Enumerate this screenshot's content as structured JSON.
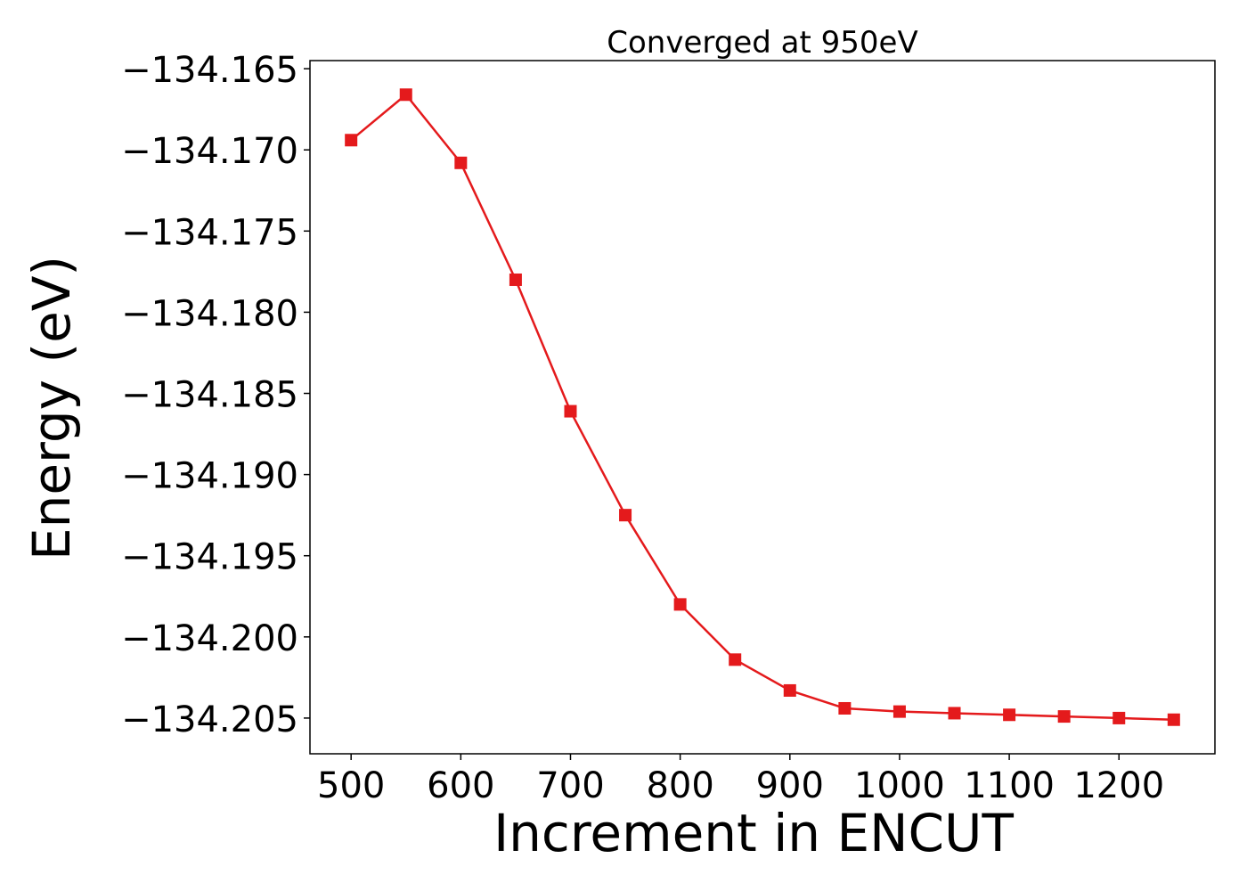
{
  "chart_data": {
    "type": "line",
    "title": "Converged at 950eV",
    "xlabel": "Increment in ENCUT",
    "ylabel": "Energy (eV)",
    "x": [
      500,
      550,
      600,
      650,
      700,
      750,
      800,
      850,
      900,
      950,
      1000,
      1050,
      1100,
      1150,
      1200,
      1250
    ],
    "series": [
      {
        "values": [
          -134.1694,
          -134.1666,
          -134.1708,
          -134.178,
          -134.1861,
          -134.1925,
          -134.198,
          -134.2014,
          -134.2033,
          -134.2044,
          -134.2046,
          -134.2047,
          -134.2048,
          -134.2049,
          -134.205,
          -134.2051
        ],
        "color": "#e41a1c",
        "marker": "square"
      }
    ],
    "xticks": [
      500,
      600,
      700,
      800,
      900,
      1000,
      1100,
      1200
    ],
    "xtick_labels": [
      "500",
      "600",
      "700",
      "800",
      "900",
      "1000",
      "1100",
      "1200"
    ],
    "yticks": [
      -134.165,
      -134.17,
      -134.175,
      -134.18,
      -134.185,
      -134.19,
      -134.195,
      -134.2,
      -134.205
    ],
    "ytick_labels": [
      "−134.165",
      "−134.170",
      "−134.175",
      "−134.180",
      "−134.185",
      "−134.190",
      "−134.195",
      "−134.200",
      "−134.205"
    ],
    "xlim": [
      462.5,
      1287.5
    ],
    "ylim": [
      -134.2072,
      -134.1645
    ],
    "grid": false,
    "legend": false
  }
}
